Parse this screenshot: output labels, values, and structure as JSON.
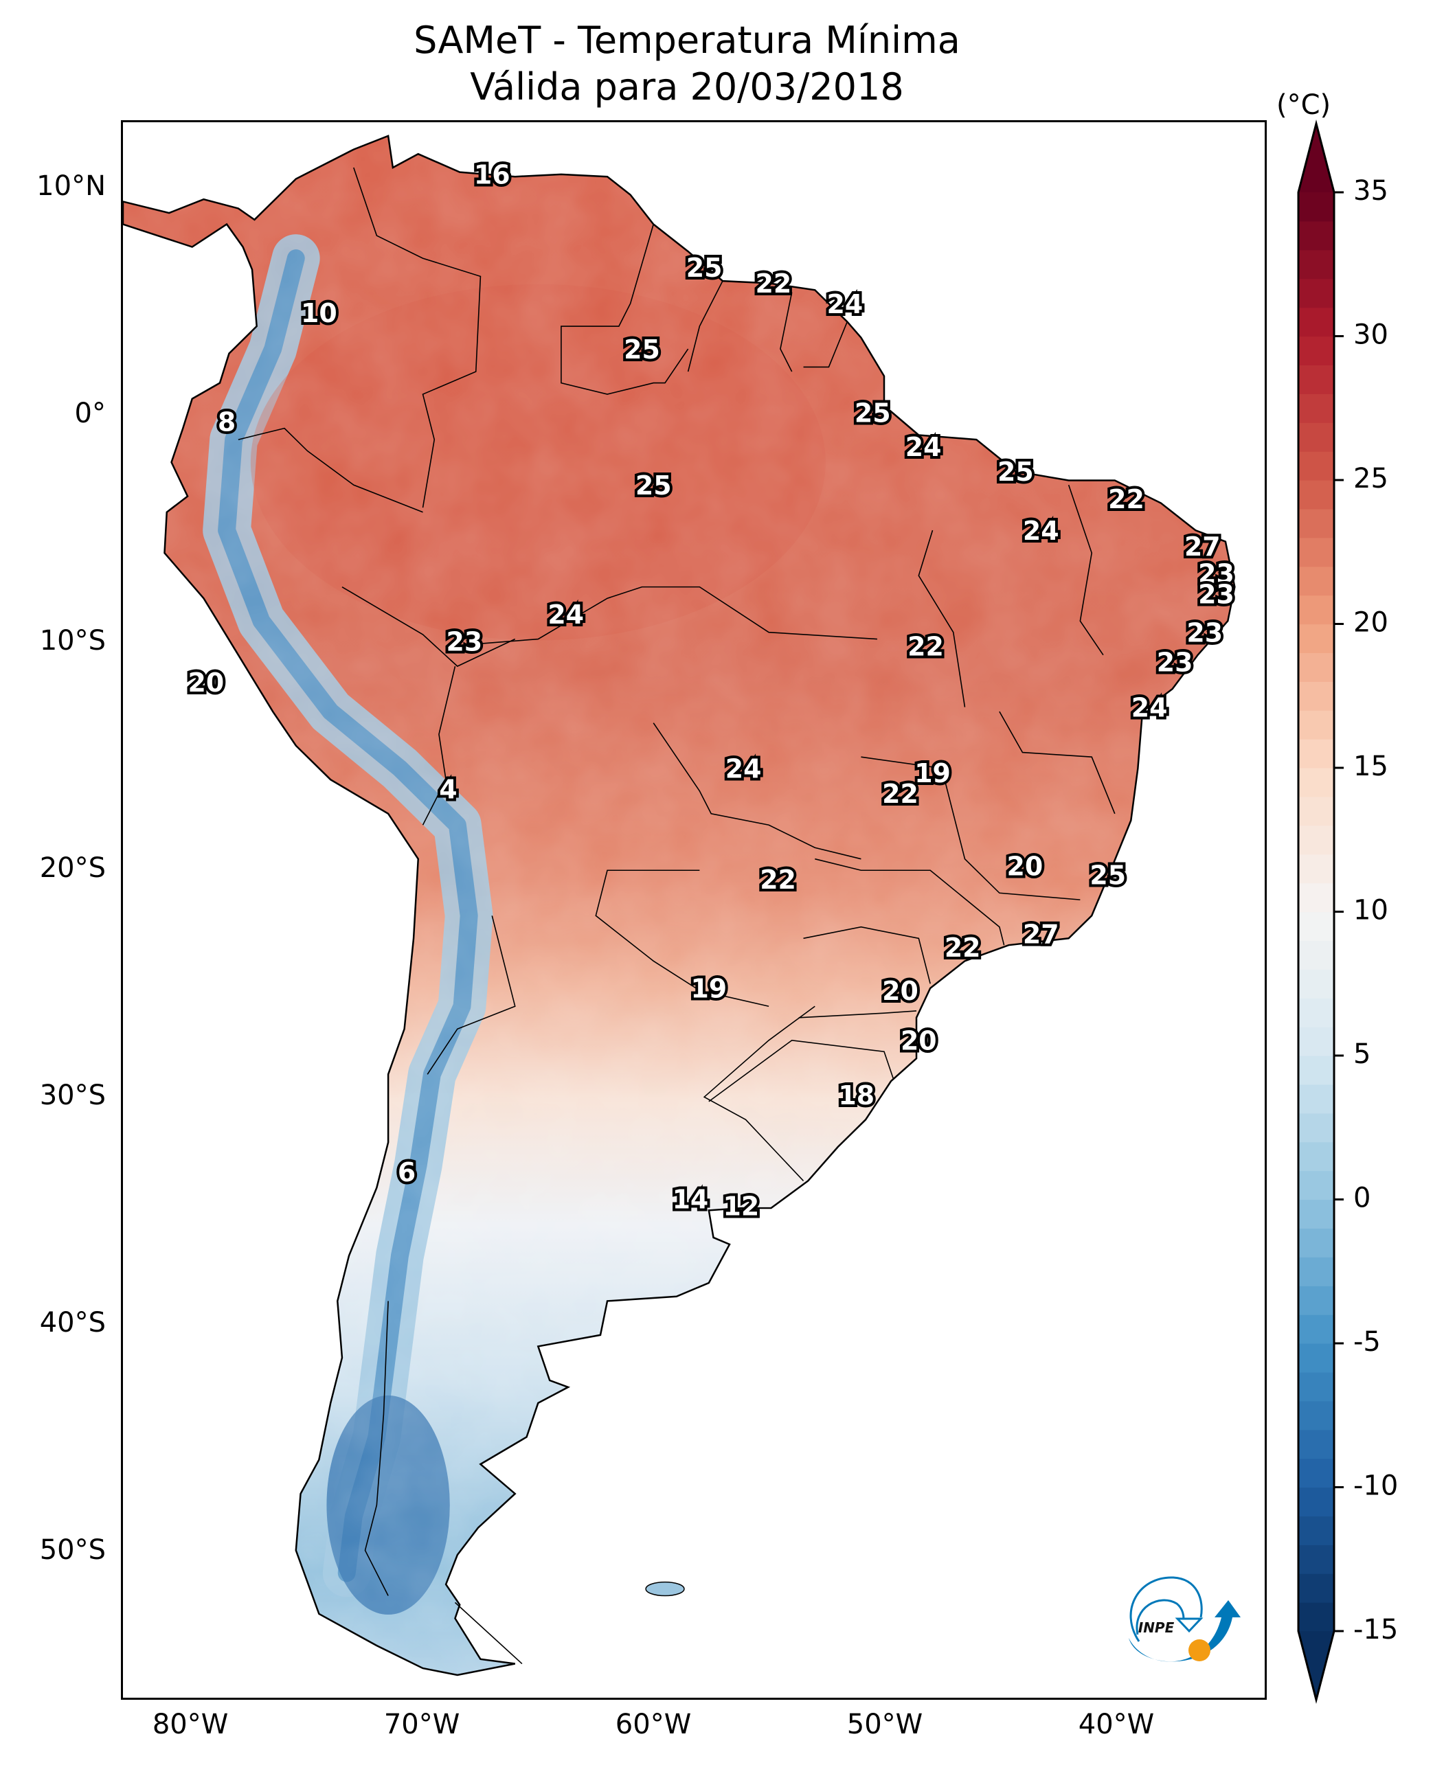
{
  "title": {
    "line1": "SAMeT - Temperatura Mínima",
    "line2": "Válida para 20/03/2018"
  },
  "chart_data": {
    "type": "heatmap",
    "title": "SAMeT - Temperatura Mínima Válida para 20/03/2018",
    "xlabel": "",
    "ylabel": "",
    "x_ticks": [
      "80°W",
      "70°W",
      "60°W",
      "50°W",
      "40°W"
    ],
    "x_tick_values": [
      -80,
      -70,
      -60,
      -50,
      -40
    ],
    "y_ticks": [
      "10°N",
      "0°",
      "10°S",
      "20°S",
      "30°S",
      "40°S",
      "50°S"
    ],
    "y_tick_values": [
      10,
      0,
      -10,
      -20,
      -30,
      -40,
      -50
    ],
    "xlim": [
      -83,
      -33.5
    ],
    "ylim": [
      -56.5,
      13
    ],
    "colorbar": {
      "unit": "(°C)",
      "range": [
        -15,
        35
      ],
      "ticks": [
        35,
        30,
        25,
        20,
        15,
        10,
        5,
        0,
        -5,
        -10,
        -15
      ],
      "colormap": "RdBu_r",
      "extend": "both"
    },
    "station_labels": [
      {
        "value": 16,
        "lon": -67,
        "lat": 10.6
      },
      {
        "value": 10,
        "lon": -74.5,
        "lat": 4.5
      },
      {
        "value": 8,
        "lon": -78.5,
        "lat": -0.3
      },
      {
        "value": 25,
        "lon": -57.8,
        "lat": 6.5
      },
      {
        "value": 22,
        "lon": -54.8,
        "lat": 5.8
      },
      {
        "value": 24,
        "lon": -51.7,
        "lat": 4.9
      },
      {
        "value": 25,
        "lon": -60.5,
        "lat": 2.9
      },
      {
        "value": 25,
        "lon": -50.5,
        "lat": 0.1
      },
      {
        "value": 24,
        "lon": -48.3,
        "lat": -1.4
      },
      {
        "value": 25,
        "lon": -60,
        "lat": -3.1
      },
      {
        "value": 25,
        "lon": -44.3,
        "lat": -2.5
      },
      {
        "value": 22,
        "lon": -39.5,
        "lat": -3.7
      },
      {
        "value": 24,
        "lon": -43.2,
        "lat": -5.1
      },
      {
        "value": 27,
        "lon": -36.2,
        "lat": -5.8
      },
      {
        "value": 23,
        "lon": -35.6,
        "lat": -7
      },
      {
        "value": 23,
        "lon": -35.6,
        "lat": -7.9
      },
      {
        "value": 23,
        "lon": -36.1,
        "lat": -9.6
      },
      {
        "value": 23,
        "lon": -37.4,
        "lat": -10.9
      },
      {
        "value": 24,
        "lon": -38.5,
        "lat": -12.9
      },
      {
        "value": 24,
        "lon": -63.8,
        "lat": -8.8
      },
      {
        "value": 23,
        "lon": -68.2,
        "lat": -10
      },
      {
        "value": 22,
        "lon": -48.2,
        "lat": -10.2
      },
      {
        "value": 20,
        "lon": -79.4,
        "lat": -11.8
      },
      {
        "value": 4,
        "lon": -68.9,
        "lat": -16.5
      },
      {
        "value": 24,
        "lon": -56.1,
        "lat": -15.6
      },
      {
        "value": 19,
        "lon": -47.9,
        "lat": -15.8
      },
      {
        "value": 22,
        "lon": -49.3,
        "lat": -16.7
      },
      {
        "value": 20,
        "lon": -43.9,
        "lat": -19.9
      },
      {
        "value": 25,
        "lon": -40.3,
        "lat": -20.3
      },
      {
        "value": 22,
        "lon": -54.6,
        "lat": -20.5
      },
      {
        "value": 27,
        "lon": -43.2,
        "lat": -22.9
      },
      {
        "value": 22,
        "lon": -46.6,
        "lat": -23.5
      },
      {
        "value": 19,
        "lon": -57.6,
        "lat": -25.3
      },
      {
        "value": 20,
        "lon": -49.3,
        "lat": -25.4
      },
      {
        "value": 20,
        "lon": -48.5,
        "lat": -27.6
      },
      {
        "value": 18,
        "lon": -51.2,
        "lat": -30
      },
      {
        "value": 6,
        "lon": -70.7,
        "lat": -33.4
      },
      {
        "value": 14,
        "lon": -58.4,
        "lat": -34.6
      },
      {
        "value": 12,
        "lon": -56.2,
        "lat": -34.9
      }
    ]
  },
  "logo": {
    "text": "INPE"
  }
}
